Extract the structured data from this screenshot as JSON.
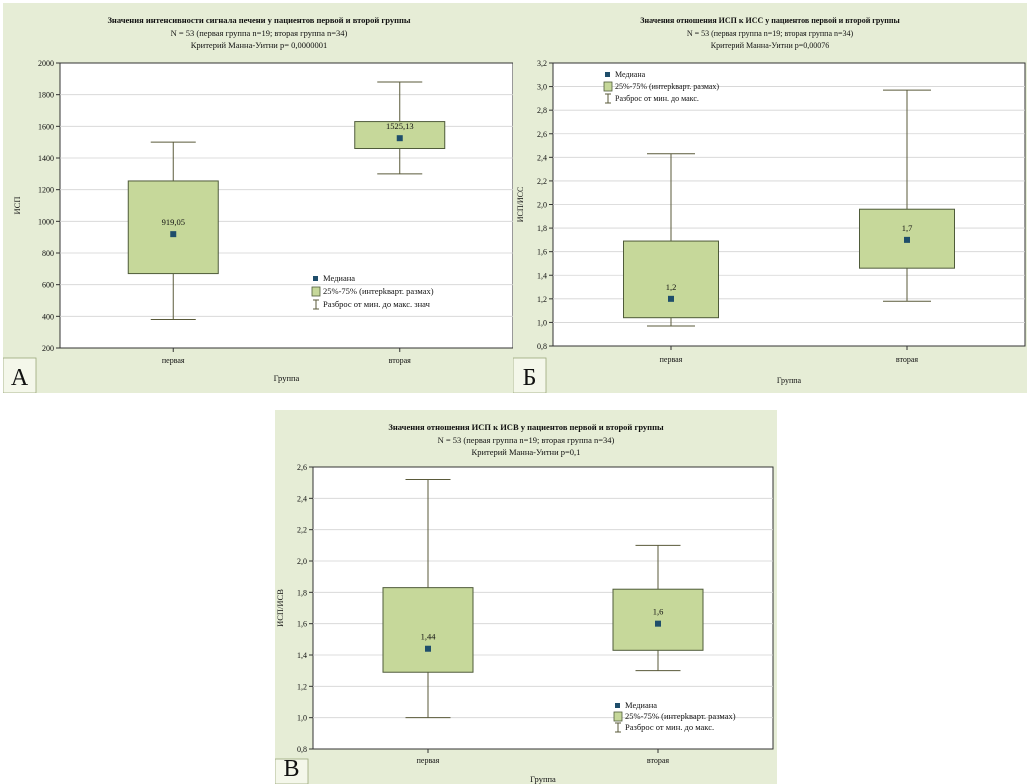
{
  "colors": {
    "panel_bg": "#e6edd6",
    "plot_bg": "#ffffff",
    "box_fill": "#c6d89a",
    "box_stroke": "#4f5b3a",
    "whisker": "#5a5a3a",
    "median_marker": "#1f4e6b",
    "grid": "#d3d3d3",
    "axis": "#333333"
  },
  "chart_data": [
    {
      "id": "A",
      "type": "boxplot",
      "panel_letter": "А",
      "title": "Значения интенсивности сигнала печени у пациентов первой и второй группы",
      "subtitle1": "N = 53 (первая группа n=19; вторая группа n=34)",
      "subtitle2": "Критерий Манна-Уитни p= 0,0000001",
      "xlabel": "Группа",
      "ylabel": "ИСП",
      "categories": [
        "первая",
        "вторая"
      ],
      "ylim": [
        200,
        2000
      ],
      "yticks": [
        200,
        400,
        600,
        800,
        1000,
        1200,
        1400,
        1600,
        1800,
        2000
      ],
      "ytick_labels": [
        "200",
        "400",
        "600",
        "800",
        "1000",
        "1200",
        "1400",
        "1600",
        "1800",
        "2000"
      ],
      "legend_position": "bottom-right",
      "legend": [
        "Медиана",
        "25%-75% (интерkварт. размах)",
        "Разброс от мин. до макс. знач"
      ],
      "boxes": [
        {
          "category": "первая",
          "min": 380,
          "q1": 670,
          "median": 919.05,
          "q3": 1255,
          "max": 1500,
          "median_label": "919,05"
        },
        {
          "category": "вторая",
          "min": 1300,
          "q1": 1460,
          "median": 1525.13,
          "q3": 1630,
          "max": 1880,
          "median_label": "1525,13"
        }
      ]
    },
    {
      "id": "B",
      "type": "boxplot",
      "panel_letter": "Б",
      "title": "Значения отношения ИСП к ИСС у пациентов первой и второй группы",
      "subtitle1": "N = 53 (первая группа n=19; вторая группа n=34)",
      "subtitle2": "Критерий Манна-Уитни p=0,00076",
      "xlabel": "Группа",
      "ylabel": "ИСП/ИСС",
      "categories": [
        "первая",
        "вторая"
      ],
      "ylim": [
        0.8,
        3.2
      ],
      "yticks": [
        0.8,
        1.0,
        1.2,
        1.4,
        1.6,
        1.8,
        2.0,
        2.2,
        2.4,
        2.6,
        2.8,
        3.0,
        3.2
      ],
      "ytick_labels": [
        "0,8",
        "1,0",
        "1,2",
        "1,4",
        "1,6",
        "1,8",
        "2,0",
        "2,2",
        "2,4",
        "2,6",
        "2,8",
        "3,0",
        "3,2"
      ],
      "legend_position": "top-left",
      "legend": [
        "Медиана",
        "25%-75% (интерkварт. размах)",
        "Разброс от мин. до макс."
      ],
      "boxes": [
        {
          "category": "первая",
          "min": 0.97,
          "q1": 1.04,
          "median": 1.2,
          "q3": 1.69,
          "max": 2.43,
          "median_label": "1,2"
        },
        {
          "category": "вторая",
          "min": 1.18,
          "q1": 1.46,
          "median": 1.7,
          "q3": 1.96,
          "max": 2.97,
          "median_label": "1,7"
        }
      ]
    },
    {
      "id": "C",
      "type": "boxplot",
      "panel_letter": "В",
      "title": "Значения отношения ИСП к ИСВ у пациентов первой и второй группы",
      "subtitle1": "N = 53 (первая группа n=19; вторая группа n=34)",
      "subtitle2": "Критерий Манна-Уитни p=0,1",
      "xlabel": "Группа",
      "ylabel": "ИСП/ИСВ",
      "categories": [
        "первая",
        "вторая"
      ],
      "ylim": [
        0.8,
        2.6
      ],
      "yticks": [
        0.8,
        1.0,
        1.2,
        1.4,
        1.6,
        1.8,
        2.0,
        2.2,
        2.4,
        2.6
      ],
      "ytick_labels": [
        "0,8",
        "1,0",
        "1,2",
        "1,4",
        "1,6",
        "1,8",
        "2,0",
        "2,2",
        "2,4",
        "2,6"
      ],
      "legend_position": "bottom-right",
      "legend": [
        "Медиана",
        "25%-75% (интерkварт. размах)",
        "Разброс от мин. до макс."
      ],
      "boxes": [
        {
          "category": "первая",
          "min": 1.0,
          "q1": 1.29,
          "median": 1.44,
          "q3": 1.83,
          "max": 2.52,
          "median_label": "1,44"
        },
        {
          "category": "вторая",
          "min": 1.3,
          "q1": 1.43,
          "median": 1.6,
          "q3": 1.82,
          "max": 2.1,
          "median_label": "1,6"
        }
      ]
    }
  ]
}
